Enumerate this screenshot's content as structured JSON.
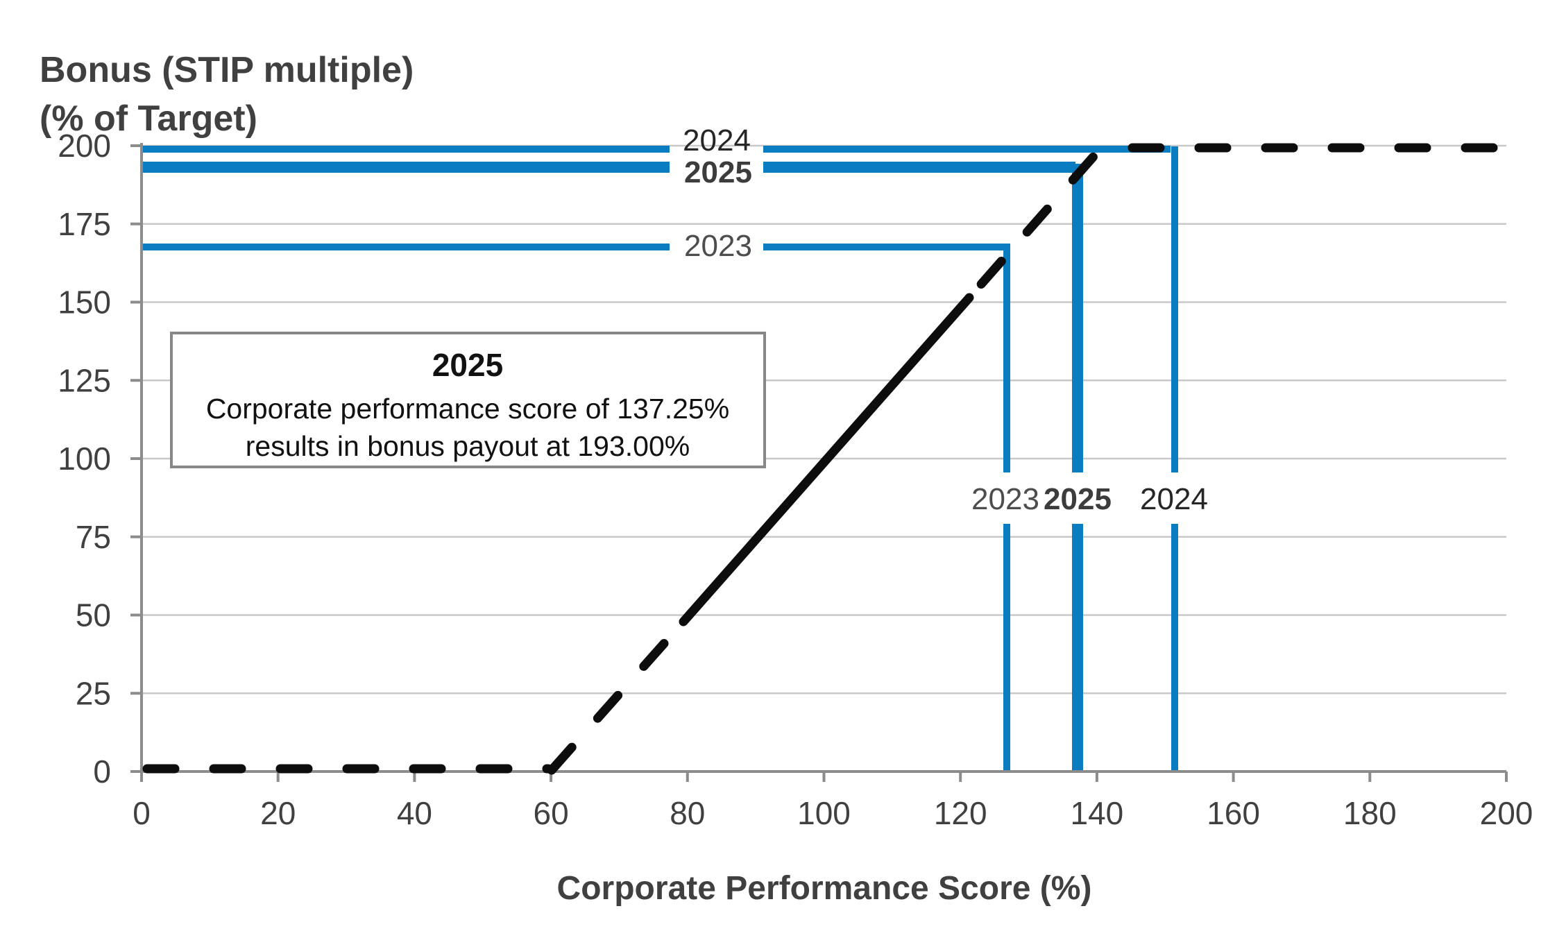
{
  "y_axis_title_line1": "Bonus (STIP multiple)",
  "y_axis_title_line2": "(% of Target)",
  "x_axis_title": "Corporate Performance Score (%)",
  "line_labels": {
    "payout_2024": "2024",
    "payout_2025": "2025",
    "payout_2023": "2023",
    "score_2023": "2023",
    "score_2025": "2025",
    "score_2024": "2024"
  },
  "annotation": {
    "title": "2025",
    "body_line1": "Corporate performance score of 137.25%",
    "body_line2": "results in bonus payout at 193.00%"
  },
  "colors": {
    "blue": "#0a7dc2",
    "black": "#0d0d0d",
    "grid": "#c8c8c8",
    "axis": "#8c8c8c",
    "text": "#404040"
  },
  "chart_data": {
    "type": "line",
    "title": "Bonus (STIP multiple) (% of Target) vs Corporate Performance Score (%)",
    "xlabel": "Corporate Performance Score (%)",
    "ylabel": "Bonus (STIP multiple) (% of Target)",
    "xlim": [
      0,
      200
    ],
    "ylim": [
      0,
      200
    ],
    "x_ticks": [
      0,
      20,
      40,
      60,
      80,
      100,
      120,
      140,
      160,
      180,
      200
    ],
    "y_ticks": [
      0,
      25,
      50,
      75,
      100,
      125,
      150,
      175,
      200
    ],
    "grid": "horizontal-only",
    "legend": "none",
    "payout_curve": {
      "name": "STIP payout curve",
      "style": "black dashed line, drawn solid between scores ~80 and ~120",
      "points": [
        [
          0,
          0
        ],
        [
          60,
          0
        ],
        [
          140,
          200
        ],
        [
          200,
          200
        ]
      ]
    },
    "reference_lines": [
      {
        "year": "2023",
        "score": 126.4,
        "payout": 167,
        "emphasis": false
      },
      {
        "year": "2024",
        "score": 151,
        "payout": 200,
        "emphasis": false
      },
      {
        "year": "2025",
        "score": 137.25,
        "payout": 193,
        "emphasis": true
      }
    ],
    "annotation_values": {
      "year": "2025",
      "score_pct": 137.25,
      "payout_pct": 193.0
    }
  }
}
